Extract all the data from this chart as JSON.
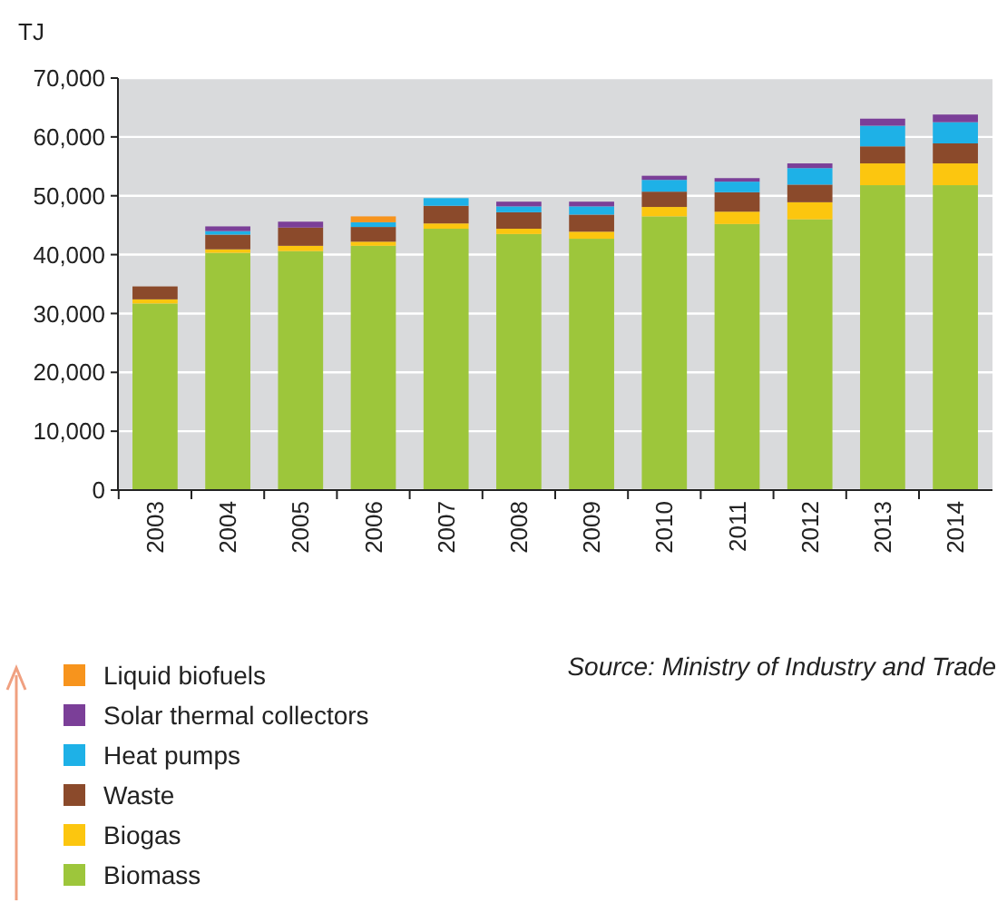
{
  "chart_data": {
    "type": "bar",
    "stacked": true,
    "ylabel": "TJ",
    "categories": [
      "2003",
      "2004",
      "2005",
      "2006",
      "2007",
      "2008",
      "2009",
      "2010",
      "2011",
      "2012",
      "2013",
      "2014"
    ],
    "series": [
      {
        "name": "Biomass",
        "color": "#9dc63b",
        "values": [
          31700,
          40300,
          40600,
          41500,
          44400,
          43500,
          42700,
          46500,
          45200,
          46000,
          51800,
          51800
        ]
      },
      {
        "name": "Biogas",
        "color": "#fcc60f",
        "values": [
          700,
          600,
          900,
          700,
          900,
          900,
          1200,
          1600,
          2100,
          2900,
          3700,
          3700
        ]
      },
      {
        "name": "Waste",
        "color": "#8b4a2b",
        "values": [
          2200,
          2500,
          3100,
          2500,
          3000,
          2800,
          2900,
          2600,
          3300,
          3000,
          2900,
          3400
        ]
      },
      {
        "name": "Heat pumps",
        "color": "#1eb1e7",
        "values": [
          0,
          600,
          0,
          800,
          1300,
          1000,
          1400,
          2000,
          1800,
          2800,
          3500,
          3600
        ]
      },
      {
        "name": "Solar thermal collectors",
        "color": "#7b3f98",
        "values": [
          0,
          800,
          1000,
          0,
          0,
          800,
          800,
          700,
          600,
          800,
          1200,
          1300
        ]
      },
      {
        "name": "Liquid biofuels",
        "color": "#f7941d",
        "values": [
          0,
          0,
          0,
          1000,
          0,
          0,
          0,
          0,
          0,
          0,
          0,
          0
        ]
      }
    ],
    "ylim": [
      0,
      70000
    ],
    "yticks": [
      {
        "value": 0,
        "label": "0"
      },
      {
        "value": 10000,
        "label": "10,000"
      },
      {
        "value": 20000,
        "label": "20,000"
      },
      {
        "value": 30000,
        "label": "30,000"
      },
      {
        "value": 40000,
        "label": "40,000"
      },
      {
        "value": 50000,
        "label": "50,000"
      },
      {
        "value": 60000,
        "label": "60,000"
      },
      {
        "value": 70000,
        "label": "70,000"
      }
    ],
    "grid": "y",
    "legend": "bottom left",
    "annotations": [
      "Source: Ministry of Industry and Trade"
    ]
  }
}
